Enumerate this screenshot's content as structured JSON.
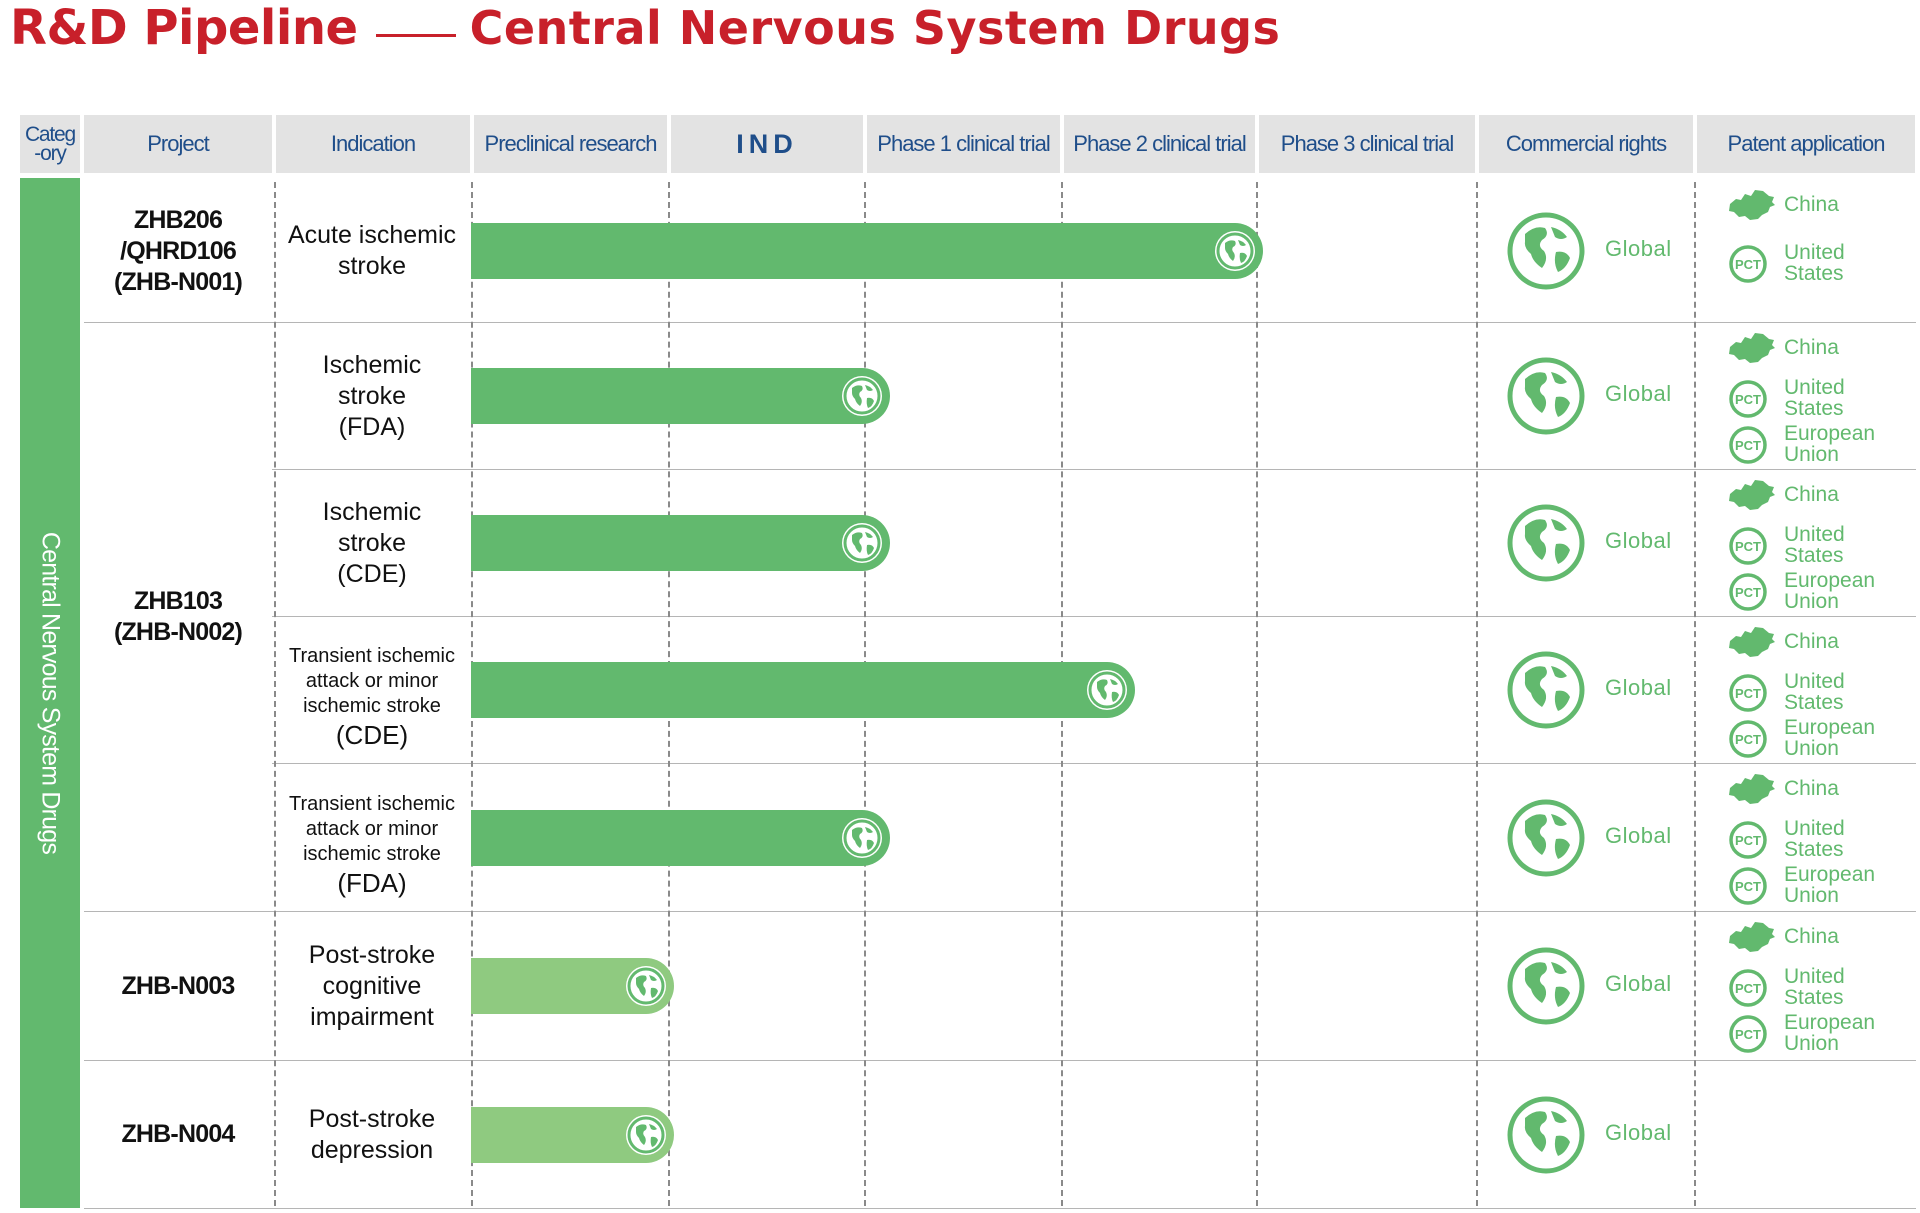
{
  "title": {
    "main": "R&D Pipeline",
    "sub": "Central Nervous System Drugs"
  },
  "headers": {
    "category": [
      "Categ",
      "-ory"
    ],
    "project": "Project",
    "indication": "Indication",
    "preclinical": "Preclinical research",
    "ind": "IND",
    "phase1": "Phase 1 clinical trial",
    "phase2": "Phase 2 clinical trial",
    "phase3": "Phase 3 clinical trial",
    "commercial": "Commercial rights",
    "patent": "Patent application"
  },
  "category_label": "Central Nervous System Drugs",
  "colors": {
    "title": "#c8202a",
    "header_text": "#1f4e8a",
    "green": "#62b96e",
    "green_light": "#8fca80",
    "header_bg": "#e3e3e3"
  },
  "icons": {
    "bar_end": "globe-icon",
    "commercial": "globe-icon",
    "patent_china": "china-map-icon",
    "patent_pct": "pct-badge-icon"
  },
  "projects": [
    {
      "name": [
        "ZHB206",
        "/QHRD106",
        "(ZHB-N001)"
      ]
    },
    {
      "name": [
        "ZHB103",
        "(ZHB-N002)"
      ]
    },
    {
      "name": [
        "ZHB-N003"
      ]
    },
    {
      "name": [
        "ZHB-N004"
      ]
    }
  ],
  "chart_data": {
    "type": "bar",
    "stages": [
      "Preclinical research",
      "IND",
      "Phase 1 clinical trial",
      "Phase 2 clinical trial",
      "Phase 3 clinical trial"
    ],
    "rows": [
      {
        "project": "ZHB206/QHRD106 (ZHB-N001)",
        "indication": [
          "Acute ischemic",
          "stroke"
        ],
        "progress_stages": 4.0,
        "reached": "Phase 2 clinical trial",
        "commercial_rights": "Global",
        "patents": [
          "China",
          "United States"
        ]
      },
      {
        "project": "ZHB103 (ZHB-N002)",
        "indication": [
          "Ischemic",
          "stroke",
          "(FDA)"
        ],
        "progress_stages": 2.1,
        "reached": "IND",
        "commercial_rights": "Global",
        "patents": [
          "China",
          "United States",
          "European Union"
        ]
      },
      {
        "project": "ZHB103 (ZHB-N002)",
        "indication": [
          "Ischemic",
          "stroke",
          "(CDE)"
        ],
        "progress_stages": 2.1,
        "reached": "IND",
        "commercial_rights": "Global",
        "patents": [
          "China",
          "United States",
          "European Union"
        ]
      },
      {
        "project": "ZHB103 (ZHB-N002)",
        "indication": [
          "Transient ischemic",
          "attack or minor",
          "ischemic stroke",
          "(CDE)"
        ],
        "progress_stages": 3.35,
        "reached": "Phase 1 clinical trial",
        "commercial_rights": "Global",
        "patents": [
          "China",
          "United States",
          "European Union"
        ]
      },
      {
        "project": "ZHB103 (ZHB-N002)",
        "indication": [
          "Transient ischemic",
          "attack or minor",
          "ischemic stroke",
          "(FDA)"
        ],
        "progress_stages": 2.1,
        "reached": "IND",
        "commercial_rights": "Global",
        "patents": [
          "China",
          "United States",
          "European Union"
        ]
      },
      {
        "project": "ZHB-N003",
        "indication": [
          "Post-stroke",
          "cognitive",
          "impairment"
        ],
        "progress_stages": 1.0,
        "reached": "Preclinical research",
        "commercial_rights": "Global",
        "patents": [
          "China",
          "United States",
          "European Union"
        ]
      },
      {
        "project": "ZHB-N004",
        "indication": [
          "Post-stroke",
          "depression"
        ],
        "progress_stages": 1.0,
        "reached": "Preclinical research",
        "commercial_rights": "Global",
        "patents": []
      }
    ],
    "patent_labels": {
      "China": [
        "China"
      ],
      "United States": [
        "United",
        "States"
      ],
      "European Union": [
        "European",
        "Union"
      ]
    }
  }
}
